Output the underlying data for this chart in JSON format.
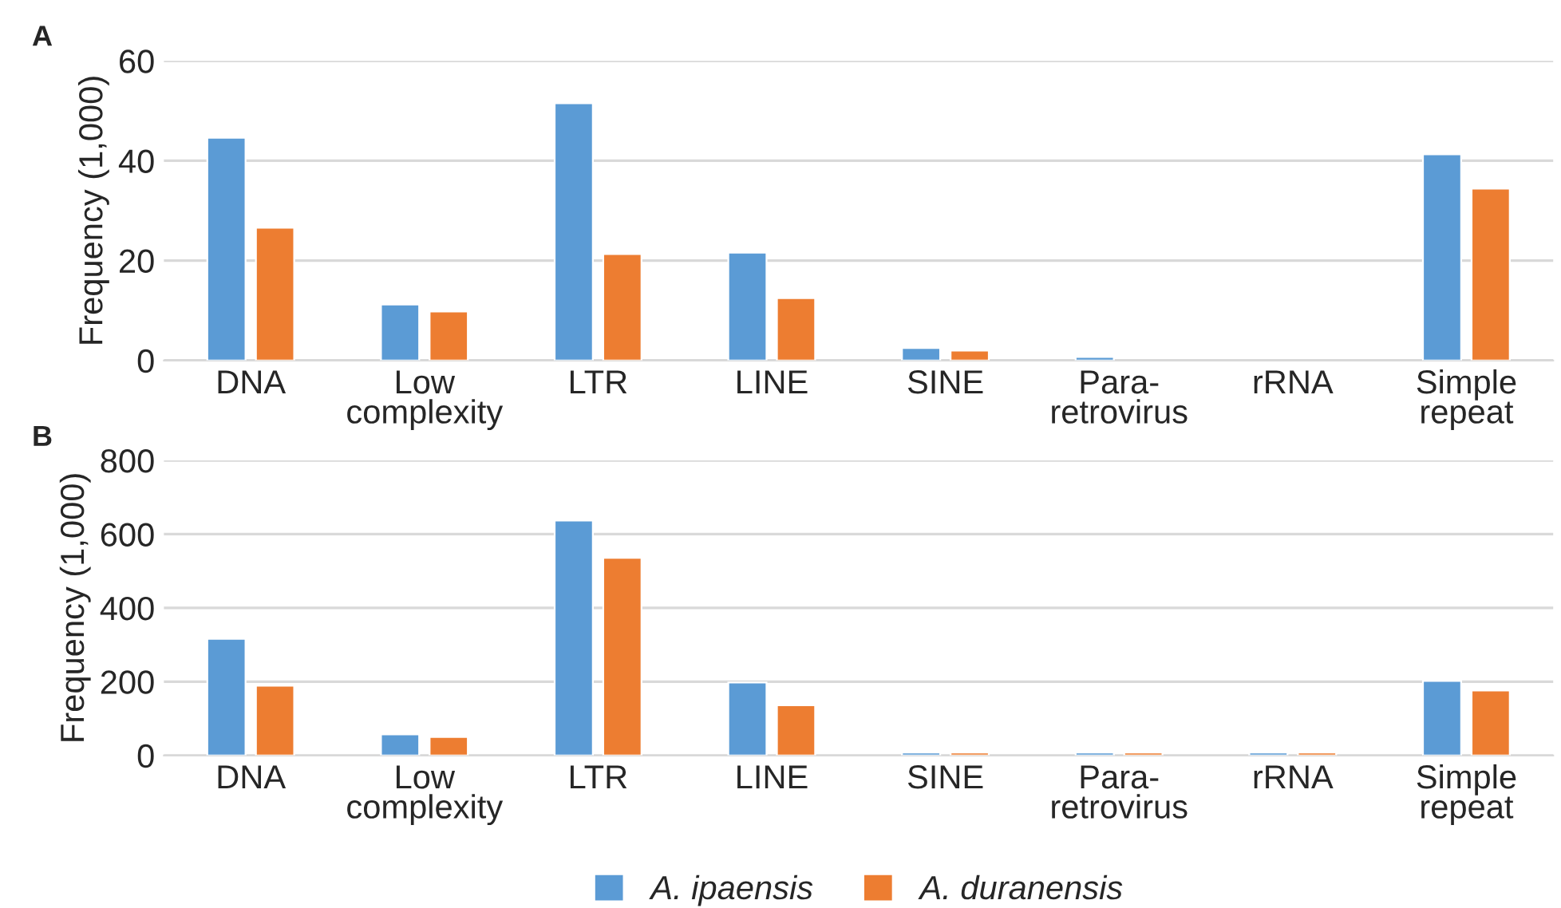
{
  "chart_data": [
    {
      "type": "bar",
      "annotations": [
        "A"
      ],
      "ylabel": "Frequency (1,000)",
      "categories": [
        "DNA",
        "Low\ncomplexity",
        "LTR",
        "LINE",
        "SINE",
        "Para-\nretrovirus",
        "rRNA",
        "Simple\nrepeat"
      ],
      "series": [
        {
          "color": "#5b9bd5",
          "values": [
            44.6,
            11.2,
            51.5,
            21.6,
            2.5,
            0.7,
            null,
            41.3
          ]
        },
        {
          "color": "#ed7d31",
          "values": [
            26.6,
            9.8,
            21.3,
            12.5,
            2.0,
            null,
            null,
            34.4
          ]
        }
      ],
      "ylim": [
        0,
        60
      ],
      "yticks": [
        0,
        20,
        40,
        60
      ],
      "grid": "y",
      "legend": false
    },
    {
      "type": "bar",
      "annotations": [
        "B"
      ],
      "ylabel": "Frequency (1,000)",
      "categories": [
        "DNA",
        "Low\ncomplexity",
        "LTR",
        "LINE",
        "SINE",
        "Para-\nretrovirus",
        "rRNA",
        "Simple\nrepeat"
      ],
      "series": [
        {
          "name": "A. ipaensis",
          "color": "#5b9bd5",
          "values": [
            316,
            57,
            637,
            198,
            8,
            8,
            8,
            202
          ]
        },
        {
          "name": "A. duranensis",
          "color": "#ed7d31",
          "values": [
            189,
            50,
            536,
            136,
            8,
            8,
            8,
            176
          ]
        }
      ],
      "ylim": [
        0,
        800
      ],
      "yticks": [
        0,
        200,
        400,
        600,
        800
      ],
      "grid": "y",
      "legend": "bottom"
    }
  ]
}
